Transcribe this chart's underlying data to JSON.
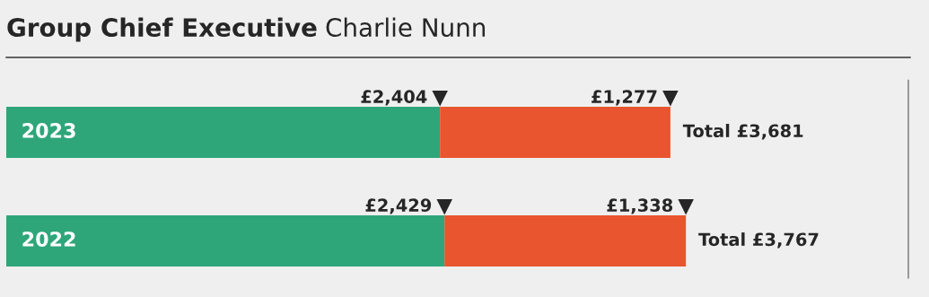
{
  "chart_data": {
    "type": "bar",
    "orientation": "horizontal",
    "stacked": true,
    "title": "Group Chief Executive",
    "subtitle": "Charlie Nunn",
    "categories": [
      "2023",
      "2022"
    ],
    "series": [
      {
        "color": "#2ea67a",
        "values": [
          2404,
          2429
        ],
        "value_labels": [
          "£2,404",
          "£2,429"
        ]
      },
      {
        "color": "#e8552e",
        "values": [
          1277,
          1338
        ],
        "value_labels": [
          "£1,277",
          "£1,338"
        ]
      }
    ],
    "totals": [
      "Total £3,681",
      "Total £3,767"
    ],
    "xlim": [
      0,
      5000
    ],
    "tick_labels": false
  }
}
